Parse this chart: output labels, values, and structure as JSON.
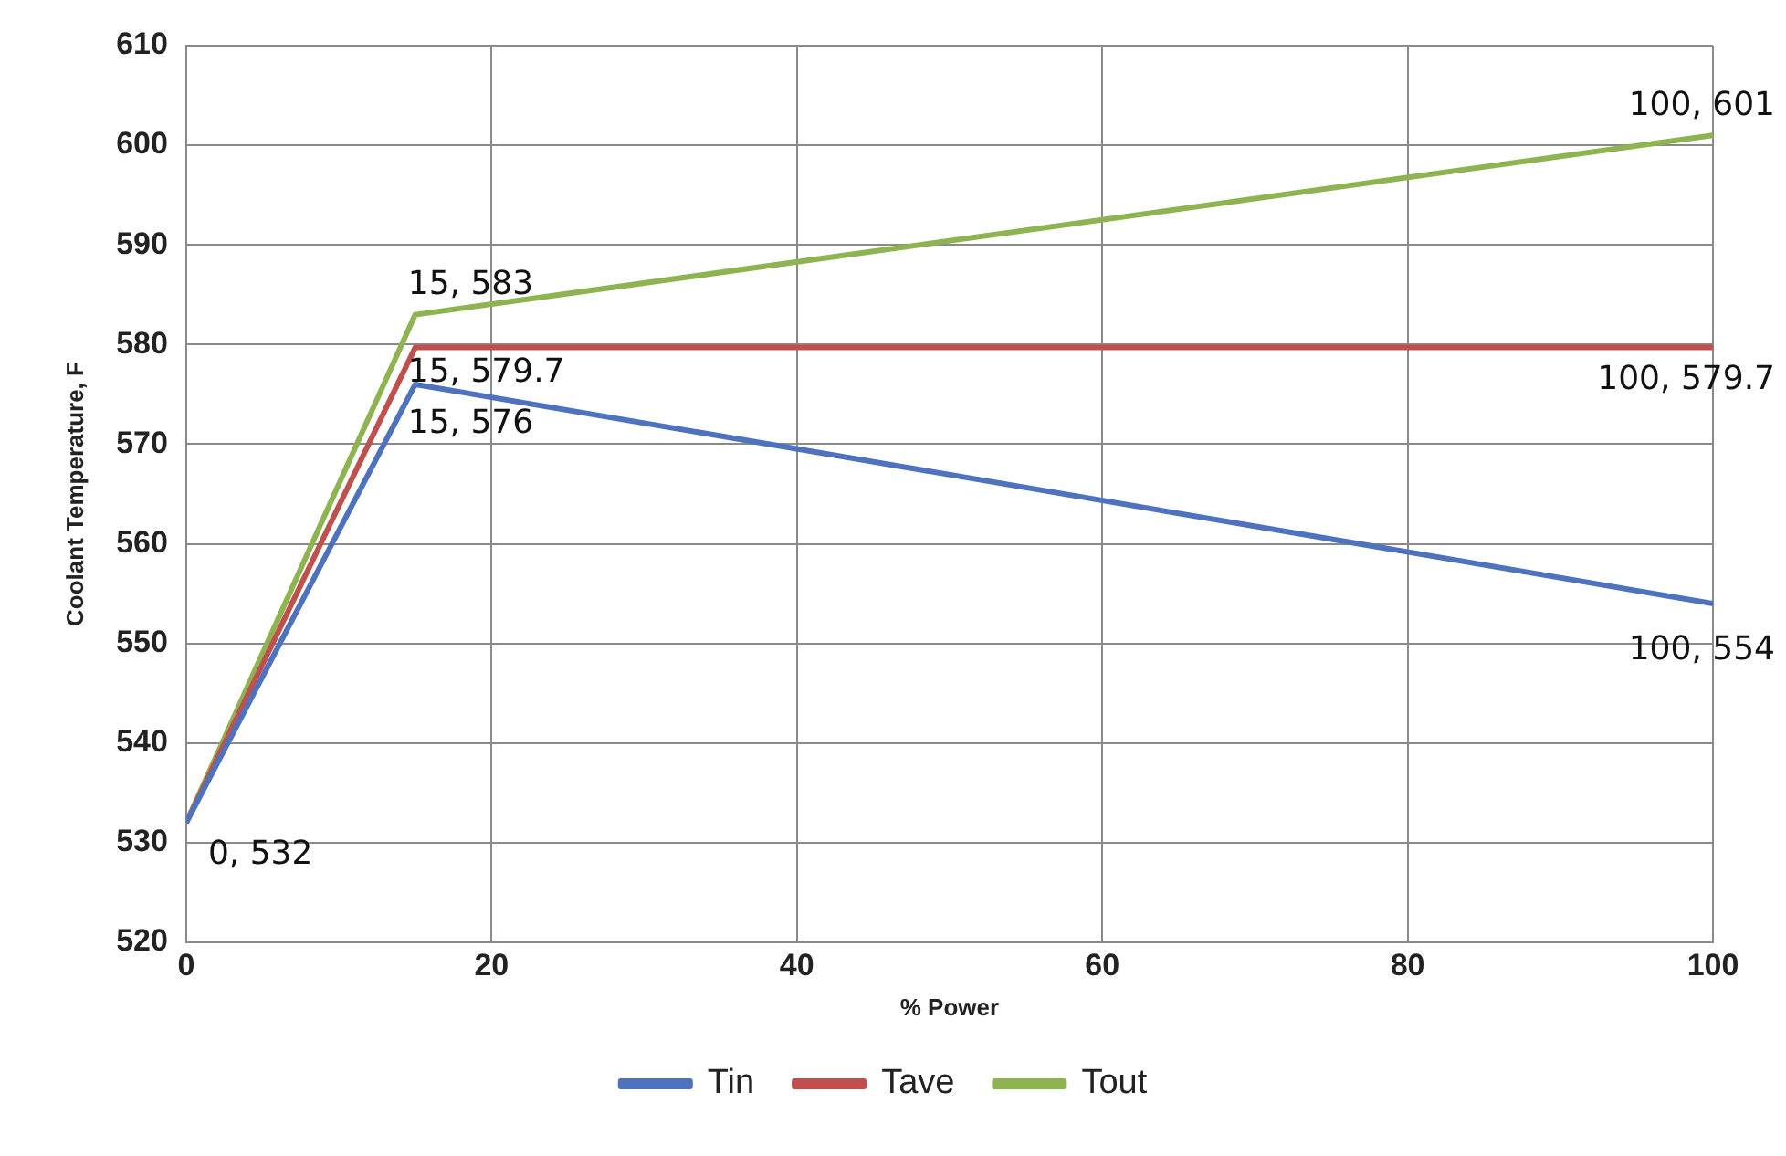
{
  "chart_data": {
    "type": "line",
    "xlabel": "% Power",
    "ylabel": "Coolant Temperature, F",
    "x": [
      0,
      15,
      100
    ],
    "xlim": [
      0,
      100
    ],
    "xticks": [
      0,
      20,
      40,
      60,
      80,
      100
    ],
    "ylim": [
      520,
      610
    ],
    "yticks": [
      520,
      530,
      540,
      550,
      560,
      570,
      580,
      590,
      600,
      610
    ],
    "grid": true,
    "legend": "bottom",
    "marker": "none",
    "line_style": "solid",
    "series": [
      {
        "name": "Tin",
        "color": "#4f72be",
        "values": [
          532,
          576,
          554
        ],
        "value_labels": [
          "0, 532",
          "15, 576",
          "100, 554"
        ]
      },
      {
        "name": "Tave",
        "color": "#c0504d",
        "values": [
          532,
          579.7,
          579.7
        ],
        "value_labels": [
          null,
          "15, 579.7",
          "100, 579.7"
        ]
      },
      {
        "name": "Tout",
        "color": "#8db450",
        "values": [
          532,
          583,
          601
        ],
        "value_labels": [
          null,
          "15, 583",
          "100, 601"
        ]
      }
    ]
  }
}
